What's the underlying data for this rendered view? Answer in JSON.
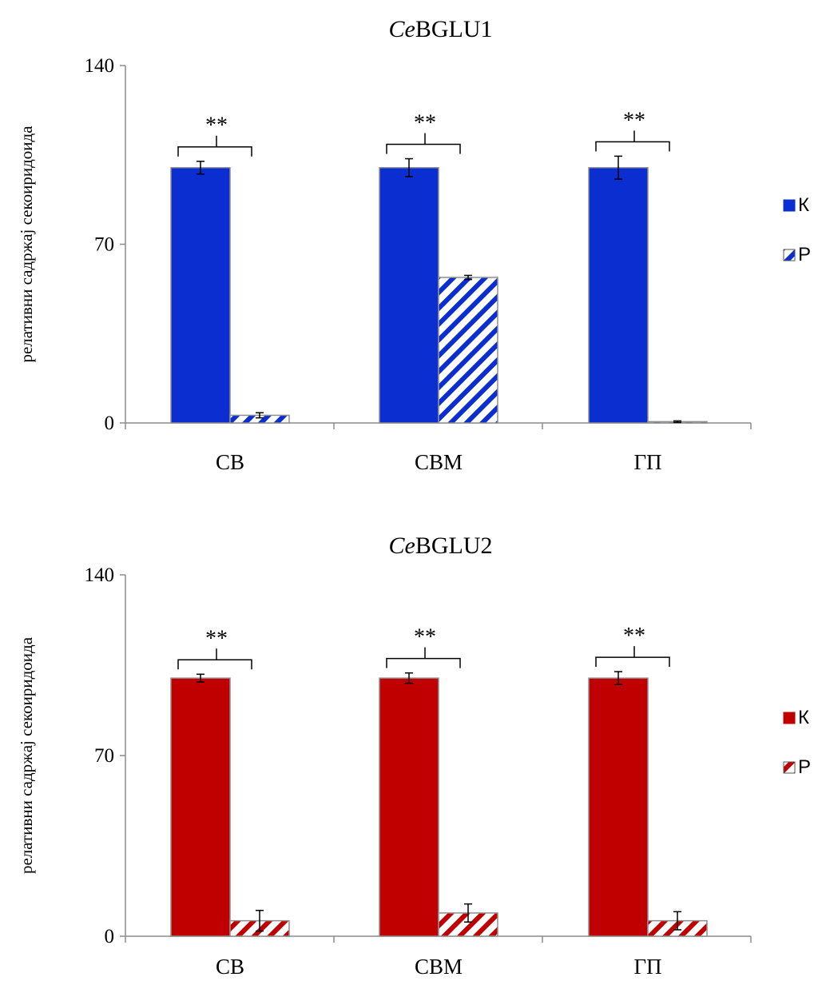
{
  "chart_data": [
    {
      "type": "bar",
      "title_italic": "Ce",
      "title_rest": "BGLU1",
      "ylabel": "релативни садржај секоиридоида",
      "ylim": [
        0,
        140
      ],
      "yticks": [
        "0",
        "70",
        "140"
      ],
      "categories": [
        "СВ",
        "СВМ",
        "ГП"
      ],
      "series": [
        {
          "name": "К",
          "values": [
            100,
            100,
            100
          ],
          "errors": [
            2.5,
            3.5,
            4.5
          ]
        },
        {
          "name": "Р",
          "values": [
            3,
            57,
            0.5
          ],
          "errors": [
            1,
            0.8,
            0.3
          ]
        }
      ],
      "significance": [
        "**",
        "**",
        "**"
      ],
      "colors": {
        "fill": "#0b2ed1",
        "stroke": "#8f8f8f"
      },
      "legend_position": "right"
    },
    {
      "type": "bar",
      "title_italic": "Ce",
      "title_rest": "BGLU2",
      "ylabel": "релативни садржај секоиридоида",
      "ylim": [
        0,
        140
      ],
      "yticks": [
        "0",
        "70",
        "140"
      ],
      "categories": [
        "СВ",
        "СВМ",
        "ГП"
      ],
      "series": [
        {
          "name": "К",
          "values": [
            100,
            100,
            100
          ],
          "errors": [
            1.5,
            2,
            2.5
          ]
        },
        {
          "name": "Р",
          "values": [
            6,
            9,
            6
          ],
          "errors": [
            4,
            3.5,
            3.5
          ]
        }
      ],
      "significance": [
        "**",
        "**",
        "**"
      ],
      "colors": {
        "fill": "#c00000",
        "stroke": "#8f8f8f"
      },
      "legend_position": "right"
    }
  ]
}
